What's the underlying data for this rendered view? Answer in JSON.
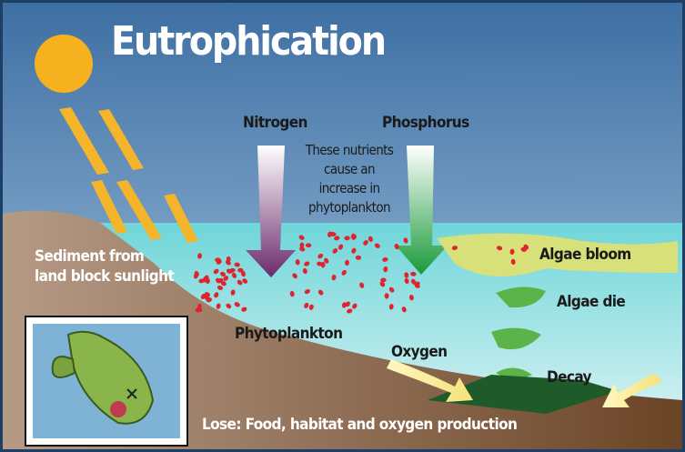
{
  "title": "Eutrophication",
  "labels": {
    "nitrogen": "Nitrogen",
    "phosphorus": "Phosphorus",
    "nutrients_note": [
      "These nutrients",
      "cause an",
      "increase in",
      "phytoplankton"
    ],
    "sediment": [
      "Sediment from",
      "land block sunlight"
    ],
    "algae_bloom": "Algae bloom",
    "algae_die": "Algae die",
    "phytoplankton": "Phytoplankton",
    "oxygen": "Oxygen",
    "decay": "Decay",
    "lose": "Lose: Food, habitat and oxygen production"
  }
}
